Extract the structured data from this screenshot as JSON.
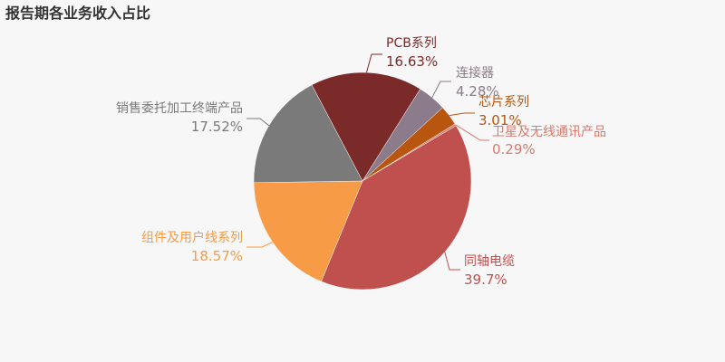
{
  "chart_data": {
    "type": "pie",
    "title": "报告期各业务收入占比",
    "categories": [
      "PCB系列",
      "连接器",
      "芯片系列",
      "卫星及无线通讯产品",
      "同轴电缆",
      "组件及用户线系列",
      "销售委托加工终端产品"
    ],
    "values": [
      16.63,
      4.28,
      3.01,
      0.29,
      39.7,
      18.57,
      17.52
    ],
    "value_labels": [
      "16.63%",
      "4.28%",
      "3.01%",
      "0.29%",
      "39.7%",
      "18.57%",
      "17.52%"
    ],
    "colors": [
      "#7b2a2a",
      "#8c7b8a",
      "#b8560f",
      "#d47a6e",
      "#c0504d",
      "#f79b46",
      "#7a7a7a"
    ]
  }
}
